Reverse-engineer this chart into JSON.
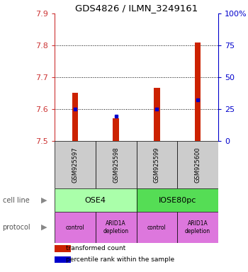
{
  "title": "GDS4826 / ILMN_3249161",
  "samples": [
    "GSM925597",
    "GSM925598",
    "GSM925599",
    "GSM925600"
  ],
  "red_values": [
    7.651,
    7.572,
    7.668,
    7.81
  ],
  "blue_values": [
    7.601,
    7.578,
    7.601,
    7.63
  ],
  "ylim_left": [
    7.5,
    7.9
  ],
  "ylim_right": [
    0,
    100
  ],
  "yticks_left": [
    7.5,
    7.6,
    7.7,
    7.8,
    7.9
  ],
  "yticks_right": [
    0,
    25,
    50,
    75,
    100
  ],
  "ytick_labels_right": [
    "0",
    "25",
    "50",
    "75",
    "100%"
  ],
  "dotted_lines": [
    7.6,
    7.7,
    7.8
  ],
  "cell_line_labels": [
    "OSE4",
    "IOSE80pc"
  ],
  "cell_line_colors": [
    "#aaffaa",
    "#55dd55"
  ],
  "cell_line_spans": [
    [
      0,
      2
    ],
    [
      2,
      4
    ]
  ],
  "protocol_labels": [
    "control",
    "ARID1A\ndepletion",
    "control",
    "ARID1A\ndepletion"
  ],
  "protocol_color": "#dd77dd",
  "bar_color": "#cc2200",
  "marker_color": "#0000cc",
  "sample_box_color": "#cccccc",
  "legend_red_label": "transformed count",
  "legend_blue_label": "percentile rank within the sample",
  "left_label_color": "#cc3333",
  "right_label_color": "#0000cc",
  "bar_width": 0.15
}
